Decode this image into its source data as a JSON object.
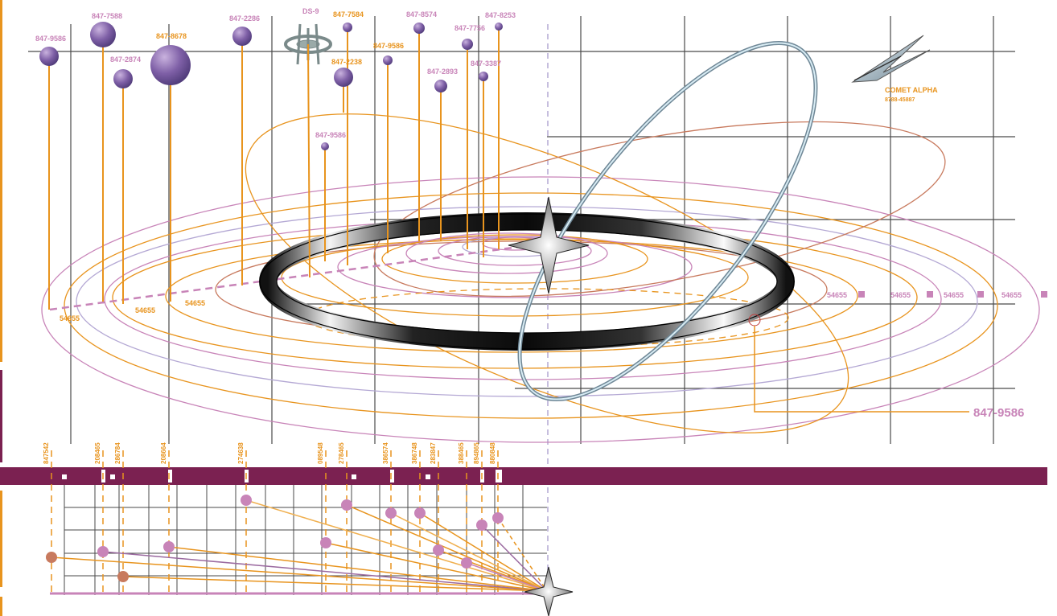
{
  "colors": {
    "orange": "#E8941E",
    "purple": "#7B2151",
    "mauve": "#C884B8",
    "brown": "#C87A5E",
    "lavender": "#B4A8D4",
    "grid": "#4a4a4a",
    "comet": "#8FB4C8",
    "planet": "#6A4E94"
  },
  "icons": {
    "station": "ds9-station-icon",
    "star": "central-star-icon",
    "comet": "comet-icon"
  },
  "bodies": [
    {
      "label": "847-9586",
      "color": "mauve"
    },
    {
      "label": "847-7588",
      "color": "mauve"
    },
    {
      "label": "847-2874",
      "color": "mauve"
    },
    {
      "label": "847-8678",
      "color": "orange"
    },
    {
      "label": "847-2286",
      "color": "mauve"
    },
    {
      "label": "DS-9",
      "color": "mauve"
    },
    {
      "label": "847-7584",
      "color": "orange"
    },
    {
      "label": "847-2238",
      "color": "orange"
    },
    {
      "label": "847-9586",
      "color": "mauve"
    },
    {
      "label": "847-9586",
      "color": "orange"
    },
    {
      "label": "847-8574",
      "color": "mauve"
    },
    {
      "label": "847-2893",
      "color": "mauve"
    },
    {
      "label": "847-7756",
      "color": "mauve"
    },
    {
      "label": "847-3387",
      "color": "mauve"
    },
    {
      "label": "847-8253",
      "color": "mauve"
    }
  ],
  "comet": {
    "name": "COMET ALPHA",
    "code": "8788-45887"
  },
  "orbit_labels": [
    "54655",
    "54655",
    "54655",
    "54655",
    "54655",
    "54655",
    "54655"
  ],
  "callout_label": "847-9586",
  "bottom_codes": [
    "847542",
    "208465",
    "286784",
    "208664",
    "274638",
    "089548",
    "278465",
    "386574",
    "386748",
    "283847",
    "388465",
    "894865",
    "880848"
  ]
}
